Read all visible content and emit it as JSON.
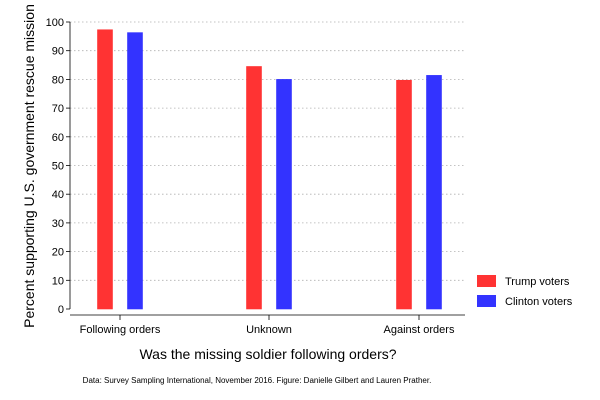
{
  "chart_data": {
    "type": "bar",
    "title": "",
    "xlabel": "Was the missing soldier following orders?",
    "ylabel": "Percent supporting U.S. government rescue mission",
    "ylim": [
      0,
      100
    ],
    "yticks": [
      0,
      10,
      20,
      30,
      40,
      50,
      60,
      70,
      80,
      90,
      100
    ],
    "grid": true,
    "legend_position": "right",
    "categories": [
      "Following orders",
      "Unknown",
      "Against orders"
    ],
    "series": [
      {
        "name": "Trump voters",
        "color": "#ff3333",
        "values": [
          97.3,
          84.5,
          79.7
        ]
      },
      {
        "name": "Clinton voters",
        "color": "#3333ff",
        "values": [
          96.3,
          80.0,
          81.4
        ]
      }
    ],
    "caption": "Data: Survey Sampling International, November 2016. Figure: Danielle Gilbert and Lauren Prather."
  }
}
